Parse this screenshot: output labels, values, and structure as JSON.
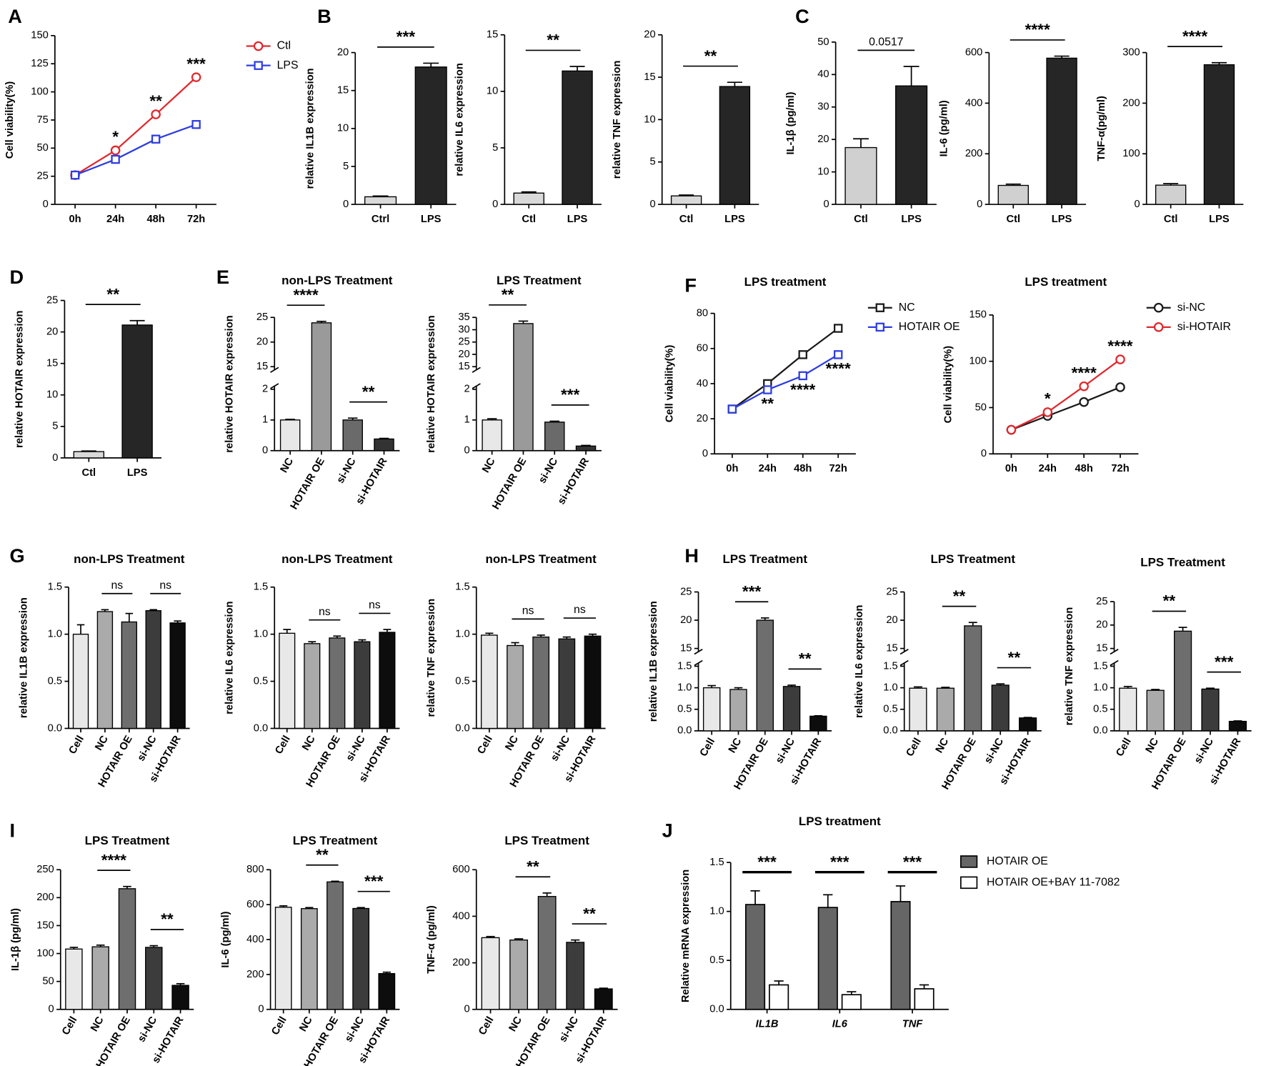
{
  "chart_data": [
    {
      "type": "line",
      "panel": "A",
      "ylabel": "Cell viability(%)",
      "categories": [
        "0h",
        "24h",
        "48h",
        "72h"
      ],
      "series": [
        {
          "name": "Ctl",
          "color": "#e0282d",
          "marker": "circle",
          "values": [
            26,
            48,
            80,
            113
          ]
        },
        {
          "name": "LPS",
          "color": "#2e3de0",
          "marker": "square",
          "values": [
            26,
            40,
            58,
            71
          ]
        }
      ],
      "ylim": [
        0,
        150
      ],
      "yticks": [
        0,
        25,
        50,
        75,
        100,
        125,
        150
      ],
      "annotations": [
        "*",
        "**",
        "***"
      ],
      "annotation_color": "#000000"
    },
    {
      "type": "bar",
      "panel": "B",
      "ylabel": "relative IL1B expression",
      "categories": [
        "Ctrl",
        "LPS"
      ],
      "values": [
        1,
        18.1
      ],
      "errors": [
        0.1,
        0.5
      ],
      "colors": [
        "#d9d9d9",
        "#262626"
      ],
      "ylim": [
        0,
        20
      ],
      "yticks": [
        0,
        5,
        10,
        15,
        20
      ],
      "annotations": [
        "***"
      ]
    },
    {
      "type": "bar",
      "ylabel": "relative IL6 expression",
      "categories": [
        "Ctl",
        "LPS"
      ],
      "values": [
        1,
        11.8
      ],
      "errors": [
        0.1,
        0.4
      ],
      "colors": [
        "#d9d9d9",
        "#262626"
      ],
      "ylim": [
        0,
        15
      ],
      "yticks": [
        0,
        5,
        10,
        15
      ],
      "annotations": [
        "**"
      ]
    },
    {
      "type": "bar",
      "ylabel": "relative TNF expression",
      "categories": [
        "Ctl",
        "LPS"
      ],
      "values": [
        1,
        13.9
      ],
      "errors": [
        0.1,
        0.5
      ],
      "colors": [
        "#d9d9d9",
        "#262626"
      ],
      "ylim": [
        0,
        20
      ],
      "yticks": [
        0,
        5,
        10,
        15,
        20
      ],
      "annotations": [
        "**"
      ]
    },
    {
      "type": "bar",
      "panel": "C",
      "ylabel": "IL-1β (pg/ml)",
      "categories": [
        "Ctl",
        "LPS"
      ],
      "values": [
        17.5,
        36.5
      ],
      "errors": [
        2.7,
        6
      ],
      "colors": [
        "#d0d0d0",
        "#262626"
      ],
      "ylim": [
        0,
        50
      ],
      "yticks": [
        0,
        10,
        20,
        30,
        40,
        50
      ],
      "annotations": [
        "0.0517"
      ]
    },
    {
      "type": "bar",
      "ylabel": "IL-6 (pg/ml)",
      "categories": [
        "Ctl",
        "LPS"
      ],
      "values": [
        75,
        578
      ],
      "errors": [
        5,
        8
      ],
      "colors": [
        "#d0d0d0",
        "#262626"
      ],
      "ylim": [
        0,
        600
      ],
      "yticks": [
        0,
        200,
        400,
        600
      ],
      "annotations": [
        "****"
      ]
    },
    {
      "type": "bar",
      "ylabel": "TNF-α(pg/ml)",
      "categories": [
        "Ctl",
        "LPS"
      ],
      "values": [
        38,
        276
      ],
      "errors": [
        3,
        4
      ],
      "colors": [
        "#d0d0d0",
        "#262626"
      ],
      "ylim": [
        0,
        300
      ],
      "yticks": [
        0,
        100,
        200,
        300
      ],
      "annotations": [
        "****"
      ]
    },
    {
      "type": "bar",
      "panel": "D",
      "ylabel": "relative HOTAIR expression",
      "categories": [
        "Ctl",
        "LPS"
      ],
      "values": [
        1,
        21.1
      ],
      "errors": [
        0.1,
        0.7
      ],
      "colors": [
        "#d9d9d9",
        "#262626"
      ],
      "ylim": [
        0,
        25
      ],
      "yticks": [
        0,
        5,
        10,
        15,
        20,
        25
      ],
      "annotations": [
        "**"
      ]
    },
    {
      "type": "bar",
      "panel": "E",
      "title": "non-LPS Treatment",
      "ylabel": "relative HOTAIR expression",
      "categories": [
        "NC",
        "HOTAIR OE",
        "si-NC",
        "si-HOTAIR"
      ],
      "values": [
        1,
        23.9,
        1,
        0.38
      ],
      "errors": [
        0.02,
        0.3,
        0.06,
        0.02
      ],
      "colors": [
        "#e8e8e8",
        "#9a9a9a",
        "#6a6a6a",
        "#333333"
      ],
      "ylim": [
        0,
        25
      ],
      "ybreak": [
        2,
        15
      ],
      "yticks": [
        0,
        1,
        2,
        15,
        20,
        25
      ],
      "annotations": [
        "****",
        "**"
      ]
    },
    {
      "type": "bar",
      "title": "LPS Treatment",
      "ylabel": "relative HOTAIR expression",
      "categories": [
        "NC",
        "HOTAIR OE",
        "si-NC",
        "si-HOTAIR"
      ],
      "values": [
        1,
        32.5,
        0.93,
        0.15
      ],
      "errors": [
        0.04,
        1,
        0.03,
        0.02
      ],
      "colors": [
        "#e8e8e8",
        "#9a9a9a",
        "#6a6a6a",
        "#333333"
      ],
      "ylim": [
        0,
        35
      ],
      "ybreak": [
        2,
        15
      ],
      "yticks": [
        0,
        1,
        2,
        15,
        20,
        25,
        30,
        35
      ],
      "annotations": [
        "**",
        "***"
      ]
    },
    {
      "type": "line",
      "panel": "F",
      "title": "LPS treatment",
      "ylabel": "Cell viability(%)",
      "categories": [
        "0h",
        "24h",
        "48h",
        "72h"
      ],
      "series": [
        {
          "name": "NC",
          "color": "#1a1a1a",
          "marker": "square",
          "values": [
            25.5,
            40,
            56.5,
            71.5
          ]
        },
        {
          "name": "HOTAIR OE",
          "color": "#2e3de0",
          "marker": "square",
          "values": [
            25.5,
            36.5,
            44.5,
            56.5
          ]
        }
      ],
      "ylim": [
        0,
        80
      ],
      "yticks": [
        0,
        20,
        40,
        60,
        80
      ],
      "annotations": [
        "**",
        "****",
        "****"
      ],
      "annotation_color": "#2e3de0"
    },
    {
      "type": "line",
      "title": "LPS treatment",
      "ylabel": "Cell viability(%)",
      "categories": [
        "0h",
        "24h",
        "48h",
        "72h"
      ],
      "series": [
        {
          "name": "si-NC",
          "color": "#1a1a1a",
          "marker": "circle",
          "values": [
            26,
            41,
            56,
            72
          ]
        },
        {
          "name": "si-HOTAIR",
          "color": "#e0282d",
          "marker": "circle",
          "values": [
            26,
            45,
            73,
            102
          ]
        }
      ],
      "ylim": [
        0,
        150
      ],
      "yticks": [
        0,
        50,
        100,
        150
      ],
      "annotations": [
        "*",
        "****",
        "****"
      ],
      "annotation_color": "#d0202a"
    },
    {
      "type": "bar",
      "panel": "G",
      "title": "non-LPS Treatment",
      "ylabel": "relative IL1B expression",
      "categories": [
        "Cell",
        "NC",
        "HOTAIR OE",
        "si-NC",
        "si-HOTAIR"
      ],
      "values": [
        1.0,
        1.24,
        1.13,
        1.25,
        1.12
      ],
      "errors": [
        0.1,
        0.02,
        0.09,
        0.01,
        0.02
      ],
      "colors": [
        "#e8e8e8",
        "#aaaaaa",
        "#6e6e6e",
        "#3c3c3c",
        "#0d0d0d"
      ],
      "ylim": [
        0,
        1.5
      ],
      "yticks": [
        {
          "value": 0,
          "label": "0.0"
        },
        0.5,
        {
          "value": 1,
          "label": "1.0"
        },
        1.5
      ],
      "annotations": [
        "ns",
        "ns"
      ]
    },
    {
      "type": "bar",
      "title": "non-LPS Treatment",
      "ylabel": "relative IL6 expression",
      "categories": [
        "Cell",
        "NC",
        "HOTAIR OE",
        "si-NC",
        "si-HOTAIR"
      ],
      "values": [
        1.01,
        0.9,
        0.96,
        0.92,
        1.02
      ],
      "errors": [
        0.04,
        0.02,
        0.02,
        0.02,
        0.03
      ],
      "colors": [
        "#e8e8e8",
        "#aaaaaa",
        "#6e6e6e",
        "#3c3c3c",
        "#0d0d0d"
      ],
      "ylim": [
        0,
        1.5
      ],
      "yticks": [
        {
          "value": 0,
          "label": "0.0"
        },
        0.5,
        {
          "value": 1,
          "label": "1.0"
        },
        1.5
      ],
      "annotations": [
        "ns",
        "ns"
      ]
    },
    {
      "type": "bar",
      "title": "non-LPS Treatment",
      "ylabel": "relative TNF expression",
      "categories": [
        "Cell",
        "NC",
        "HOTAIR OE",
        "si-NC",
        "si-HOTAIR"
      ],
      "values": [
        0.99,
        0.88,
        0.97,
        0.95,
        0.98
      ],
      "errors": [
        0.02,
        0.03,
        0.02,
        0.02,
        0.02
      ],
      "colors": [
        "#e8e8e8",
        "#aaaaaa",
        "#6e6e6e",
        "#3c3c3c",
        "#0d0d0d"
      ],
      "ylim": [
        0,
        1.5
      ],
      "yticks": [
        {
          "value": 0,
          "label": "0.0"
        },
        0.5,
        {
          "value": 1,
          "label": "1.0"
        },
        1.5
      ],
      "annotations": [
        "ns",
        "ns"
      ]
    },
    {
      "type": "bar",
      "panel": "H",
      "title": "LPS Treatment",
      "ylabel": "relative IL1B expression",
      "categories": [
        "Cell",
        "NC",
        "HOTAIR OE",
        "si-NC",
        "si-HOTAIR"
      ],
      "values": [
        1,
        0.96,
        20,
        1.03,
        0.34
      ],
      "errors": [
        0.05,
        0.04,
        0.4,
        0.03,
        0.01
      ],
      "colors": [
        "#e8e8e8",
        "#aaaaaa",
        "#6e6e6e",
        "#3c3c3c",
        "#0d0d0d"
      ],
      "ylim": [
        0,
        25
      ],
      "ybreak": [
        1.5,
        15
      ],
      "yticks": [
        {
          "value": 0,
          "label": "0.0"
        },
        0.5,
        {
          "value": 1,
          "label": "1.0"
        },
        1.5,
        15,
        20,
        25
      ],
      "annotations": [
        "***",
        "**"
      ]
    },
    {
      "type": "bar",
      "title": "LPS Treatment",
      "ylabel": "relative IL6 expression",
      "categories": [
        "Cell",
        "NC",
        "HOTAIR OE",
        "si-NC",
        "si-HOTAIR"
      ],
      "values": [
        0.99,
        0.99,
        19,
        1.06,
        0.3
      ],
      "errors": [
        0.03,
        0.02,
        0.6,
        0.03,
        0.01
      ],
      "colors": [
        "#e8e8e8",
        "#aaaaaa",
        "#6e6e6e",
        "#3c3c3c",
        "#0d0d0d"
      ],
      "ylim": [
        0,
        25
      ],
      "ybreak": [
        1.5,
        15
      ],
      "yticks": [
        {
          "value": 0,
          "label": "0.0"
        },
        0.5,
        {
          "value": 1,
          "label": "1.0"
        },
        1.5,
        15,
        20,
        25
      ],
      "annotations": [
        "**",
        "**"
      ]
    },
    {
      "type": "bar",
      "title": "LPS Treatment",
      "ylabel": "relative TNF expression",
      "categories": [
        "Cell",
        "NC",
        "HOTAIR OE",
        "si-NC",
        "si-HOTAIR"
      ],
      "values": [
        0.99,
        0.94,
        18.7,
        0.97,
        0.22
      ],
      "errors": [
        0.04,
        0.02,
        0.8,
        0.02,
        0.01
      ],
      "colors": [
        "#e8e8e8",
        "#aaaaaa",
        "#6e6e6e",
        "#3c3c3c",
        "#0d0d0d"
      ],
      "ylim": [
        0,
        25
      ],
      "ybreak": [
        1.5,
        15
      ],
      "yticks": [
        {
          "value": 0,
          "label": "0.0"
        },
        0.5,
        {
          "value": 1,
          "label": "1.0"
        },
        1.5,
        15,
        20,
        25
      ],
      "annotations": [
        "**",
        "***"
      ]
    },
    {
      "type": "bar",
      "panel": "I",
      "title": "LPS Treatment",
      "ylabel": "IL-1β (pg/ml)",
      "categories": [
        "Cell",
        "NC",
        "HOTAIR OE",
        "si-NC",
        "si-HOTAIR"
      ],
      "values": [
        108,
        112,
        216,
        111,
        43
      ],
      "errors": [
        3,
        3,
        4,
        3,
        3
      ],
      "colors": [
        "#e8e8e8",
        "#aaaaaa",
        "#6e6e6e",
        "#3c3c3c",
        "#0d0d0d"
      ],
      "ylim": [
        0,
        250
      ],
      "yticks": [
        0,
        50,
        100,
        150,
        200,
        250
      ],
      "annotations": [
        "****",
        "**"
      ]
    },
    {
      "type": "bar",
      "title": "LPS Treatment",
      "ylabel": "IL-6 (pg/ml)",
      "categories": [
        "Cell",
        "NC",
        "HOTAIR OE",
        "si-NC",
        "si-HOTAIR"
      ],
      "values": [
        585,
        577,
        730,
        578,
        205
      ],
      "errors": [
        8,
        6,
        4,
        5,
        8
      ],
      "colors": [
        "#e8e8e8",
        "#aaaaaa",
        "#6e6e6e",
        "#3c3c3c",
        "#0d0d0d"
      ],
      "ylim": [
        0,
        800
      ],
      "yticks": [
        0,
        200,
        400,
        600,
        800
      ],
      "annotations": [
        "**",
        "***"
      ]
    },
    {
      "type": "bar",
      "title": "LPS Treatment",
      "ylabel": "TNF-α (pg/ml)",
      "categories": [
        "Cell",
        "NC",
        "HOTAIR OE",
        "si-NC",
        "si-HOTAIR"
      ],
      "values": [
        308,
        298,
        485,
        288,
        88
      ],
      "errors": [
        5,
        5,
        15,
        10,
        3
      ],
      "colors": [
        "#e8e8e8",
        "#aaaaaa",
        "#6e6e6e",
        "#3c3c3c",
        "#0d0d0d"
      ],
      "ylim": [
        0,
        600
      ],
      "yticks": [
        0,
        200,
        400,
        600
      ],
      "annotations": [
        "**",
        "**"
      ]
    },
    {
      "type": "grouped_bar",
      "panel": "J",
      "title": "LPS treatment",
      "ylabel": "Relative mRNA expression",
      "categories": [
        "IL1B",
        "IL6",
        "TNF"
      ],
      "series": [
        {
          "name": "HOTAIR OE",
          "color": "#666666",
          "values": [
            1.07,
            1.04,
            1.1
          ],
          "errors": [
            0.14,
            0.13,
            0.16
          ]
        },
        {
          "name": "HOTAIR OE+BAY 11-7082",
          "color": "#ffffff",
          "values": [
            0.25,
            0.15,
            0.21
          ],
          "errors": [
            0.04,
            0.03,
            0.04
          ]
        }
      ],
      "ylim": [
        0,
        1.5
      ],
      "yticks": [
        {
          "value": 0,
          "label": "0.0"
        },
        0.5,
        {
          "value": 1,
          "label": "1.0"
        },
        1.5
      ],
      "annotations": [
        "***",
        "***",
        "***"
      ]
    }
  ]
}
